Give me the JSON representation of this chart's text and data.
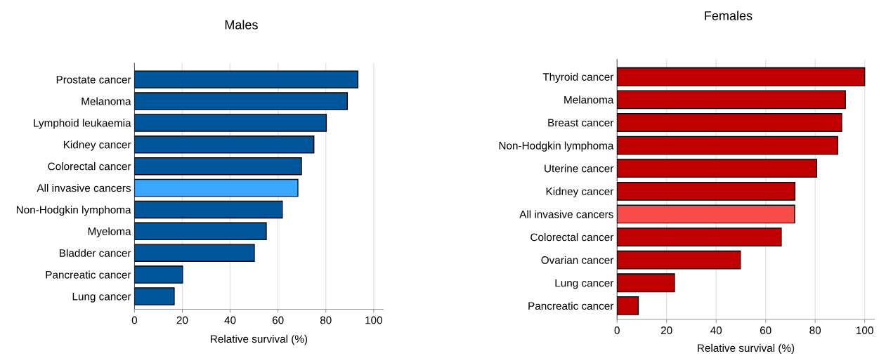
{
  "chart_data": [
    {
      "type": "bar",
      "orientation": "horizontal",
      "title": "Males",
      "xlabel": "Relative survival (%)",
      "categories": [
        "Prostate cancer",
        "Melanoma",
        "Lymphoid leukaemia",
        "Kidney cancer",
        "Colorectal cancer",
        "All invasive cancers",
        "Non-Hodgkin lymphoma",
        "Myeloma",
        "Bladder cancer",
        "Pancreatic cancer",
        "Lung cancer"
      ],
      "values": [
        93.4,
        89.0,
        80.2,
        75.0,
        69.8,
        68.3,
        61.8,
        55.1,
        50.1,
        20.1,
        16.6
      ],
      "colors": [
        "#00569a",
        "#00569a",
        "#00569a",
        "#00569a",
        "#00569a",
        "#3aa8ff",
        "#00569a",
        "#00569a",
        "#00569a",
        "#00569a",
        "#00569a"
      ],
      "xlim": [
        0,
        104
      ],
      "xticks": [
        0,
        20,
        40,
        60,
        80,
        100
      ],
      "grid": "x",
      "legend": false
    },
    {
      "type": "bar",
      "orientation": "horizontal",
      "title": "Females",
      "xlabel": "Relative survival (%)",
      "categories": [
        "Thyroid cancer",
        "Melanoma",
        "Breast cancer",
        "Non-Hodgkin lymphoma",
        "Uterine cancer",
        "Kidney cancer",
        "All invasive cancers",
        "Colorectal cancer",
        "Ovarian cancer",
        "Lung cancer",
        "Pancreatic cancer"
      ],
      "values": [
        100.0,
        92.2,
        90.7,
        89.1,
        80.6,
        71.8,
        71.7,
        66.3,
        49.8,
        23.2,
        8.6
      ],
      "colors": [
        "#c00000",
        "#c00000",
        "#c00000",
        "#c00000",
        "#c00000",
        "#c00000",
        "#fa4b4b",
        "#c00000",
        "#c00000",
        "#c00000",
        "#c00000"
      ],
      "xlim": [
        0,
        104
      ],
      "xticks": [
        0,
        20,
        40,
        60,
        80,
        100
      ],
      "grid": "x",
      "legend": false
    }
  ]
}
